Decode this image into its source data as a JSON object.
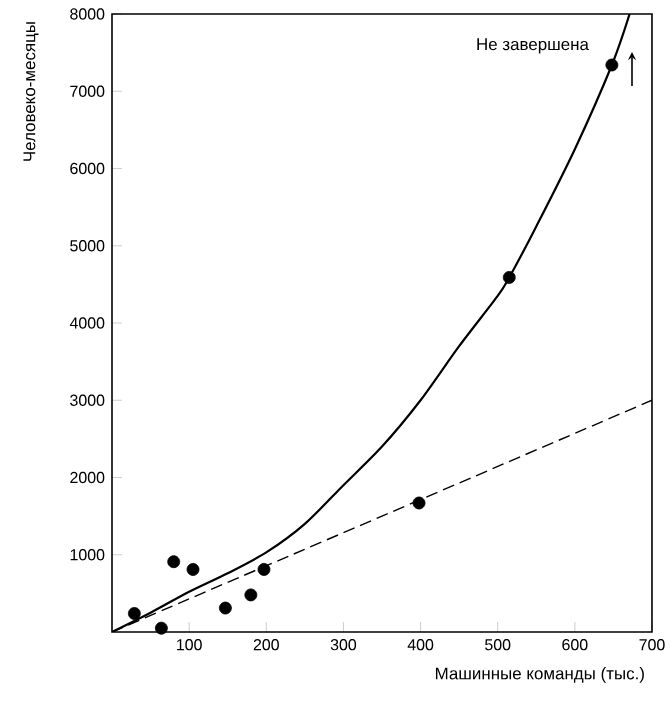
{
  "chart_data": {
    "type": "scatter",
    "xlabel": "Машинные команды (тыс.)",
    "ylabel": "Человеко-месяцы",
    "xlim": [
      0,
      700
    ],
    "ylim": [
      0,
      8000
    ],
    "xticks": [
      100,
      200,
      300,
      400,
      500,
      600,
      700
    ],
    "yticks": [
      1000,
      2000,
      3000,
      4000,
      5000,
      6000,
      7000,
      8000
    ],
    "annotations": [
      "Не завершена"
    ],
    "grid": false,
    "series": [
      {
        "color": "#000000",
        "marker": "circle",
        "x": [
          29,
          64,
          80,
          105,
          147,
          180,
          197,
          398,
          515,
          648
        ],
        "values": [
          240,
          50,
          910,
          810,
          310,
          480,
          810,
          1670,
          4590,
          7340
        ]
      },
      {
        "type": "line",
        "color": "#000000",
        "marker": "none",
        "line_style": "solid",
        "x": [
          0,
          50,
          100,
          150,
          200,
          250,
          300,
          350,
          400,
          450,
          500,
          515,
          550,
          600,
          648,
          671
        ],
        "values": [
          0,
          250,
          520,
          760,
          1030,
          1400,
          1900,
          2400,
          3000,
          3700,
          4350,
          4590,
          5250,
          6250,
          7340,
          8000
        ]
      },
      {
        "type": "line",
        "color": "#000000",
        "marker": "none",
        "line_style": "dashed",
        "x": [
          0,
          700
        ],
        "values": [
          0,
          3000
        ]
      }
    ]
  }
}
